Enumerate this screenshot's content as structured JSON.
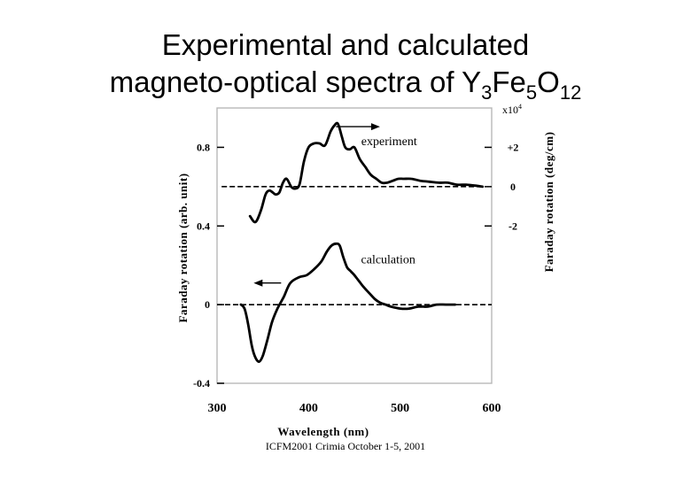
{
  "title_line1": "Experimental and calculated",
  "title_line2_prefix": "magneto-optical spectra of Y",
  "title_sub1": "3",
  "title_mid1": "Fe",
  "title_sub2": "5",
  "title_mid2": "O",
  "title_sub3": "12",
  "footer": "ICFM2001 Crimia October 1-5, 2001",
  "chart_data": {
    "type": "line",
    "xlabel": "Wavelength (nm)",
    "ylabel_left": "Faraday rotation (arb. unit)",
    "ylabel_right": "Faraday rotation (deg/cm)",
    "right_multiplier": "x10",
    "right_multiplier_exp": "4",
    "xlim": [
      300,
      600
    ],
    "ylim_left": [
      -0.4,
      1.0
    ],
    "x_ticks": [
      "300",
      "400",
      "500",
      "600"
    ],
    "x_tick_values": [
      300,
      400,
      500,
      600
    ],
    "left_ticks": [
      "0.8",
      "0.4",
      "0",
      "-0.4"
    ],
    "left_tick_values": [
      0.8,
      0.4,
      0,
      -0.4
    ],
    "right_ticks": [
      "+2",
      "0",
      "-2"
    ],
    "right_tick_values": [
      2,
      0,
      -2
    ],
    "right_axis_map": {
      "zero_left": 0.6,
      "per_unit_left": 0.1
    },
    "baselines": [
      {
        "name": "experiment-zero",
        "y_left": 0.6,
        "x_from": 305,
        "x_to": 590
      },
      {
        "name": "calculation-zero",
        "y_left": 0.0,
        "x_from": 300,
        "x_to": 600
      }
    ],
    "annotations": [
      {
        "text": "experiment",
        "x": 488,
        "y_left": 0.81
      },
      {
        "text": "calculation",
        "x": 487,
        "y_left": 0.21
      }
    ],
    "arrows": [
      {
        "name": "experiment-arrow",
        "x_from": 430,
        "x_to": 478,
        "y_left": 0.905
      },
      {
        "name": "calculation-arrow",
        "x_from": 370,
        "x_to": 340,
        "y_left": 0.11
      }
    ],
    "series": [
      {
        "name": "experiment",
        "x": [
          336,
          342,
          348,
          353,
          357,
          361,
          364,
          368,
          372,
          376,
          381,
          385,
          390,
          395,
          400,
          406,
          412,
          418,
          424,
          428,
          432,
          436,
          440,
          445,
          450,
          456,
          462,
          468,
          474,
          480,
          486,
          492,
          498,
          504,
          512,
          522,
          532,
          542,
          552,
          562,
          572,
          582,
          590
        ],
        "y_left": [
          0.45,
          0.42,
          0.48,
          0.56,
          0.58,
          0.57,
          0.56,
          0.57,
          0.62,
          0.64,
          0.6,
          0.59,
          0.61,
          0.73,
          0.8,
          0.82,
          0.82,
          0.81,
          0.88,
          0.91,
          0.92,
          0.86,
          0.8,
          0.79,
          0.8,
          0.74,
          0.7,
          0.66,
          0.64,
          0.62,
          0.62,
          0.63,
          0.64,
          0.64,
          0.64,
          0.63,
          0.625,
          0.62,
          0.62,
          0.61,
          0.61,
          0.605,
          0.6
        ]
      },
      {
        "name": "calculation",
        "x": [
          326,
          330,
          334,
          338,
          342,
          346,
          350,
          355,
          360,
          366,
          373,
          380,
          390,
          398,
          406,
          414,
          420,
          425,
          430,
          434,
          438,
          442,
          446,
          450,
          455,
          460,
          466,
          472,
          478,
          484,
          490,
          500,
          510,
          520,
          530,
          540,
          550,
          560
        ],
        "y_left": [
          0.0,
          -0.02,
          -0.1,
          -0.21,
          -0.27,
          -0.29,
          -0.26,
          -0.18,
          -0.09,
          -0.02,
          0.04,
          0.11,
          0.14,
          0.15,
          0.18,
          0.22,
          0.27,
          0.3,
          0.31,
          0.3,
          0.24,
          0.19,
          0.17,
          0.15,
          0.12,
          0.09,
          0.06,
          0.03,
          0.01,
          0.0,
          -0.01,
          -0.02,
          -0.02,
          -0.01,
          -0.01,
          0.0,
          0.0,
          0.0
        ]
      }
    ]
  }
}
